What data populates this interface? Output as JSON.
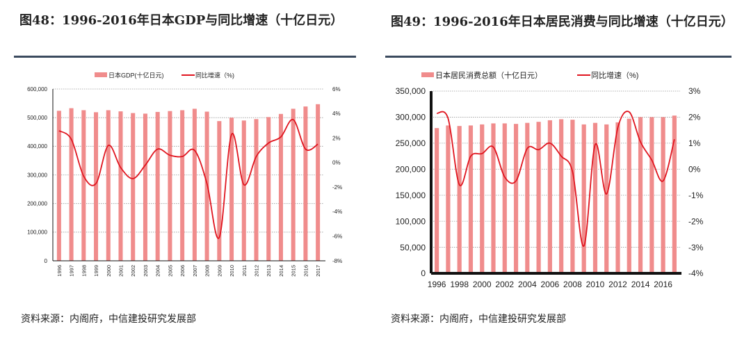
{
  "charts": [
    {
      "title": "图48：1996-2016年日本GDP与同比增速（十亿日元）",
      "source": "资料来源：内阁府，中信建投研究发展部"
    },
    {
      "title": "图49：1996-2016年日本居民消费与同比增速（十亿日元）",
      "source": "资料来源：内阁府，中信建投研究发展部"
    }
  ],
  "colors": {
    "bar": "#f08c8c",
    "line": "#e0141e",
    "rule": "#3b4a5e"
  },
  "chart_data": [
    {
      "type": "bar+line",
      "title": "1996-2016年日本GDP与同比增速（十亿日元）",
      "legend": [
        "日本GDP(十亿日元)",
        "同比增速（%)"
      ],
      "legend_position": "top",
      "categories": [
        "1996",
        "1997",
        "1998",
        "1999",
        "2000",
        "2001",
        "2002",
        "2003",
        "2004",
        "2005",
        "2006",
        "2007",
        "2008",
        "2009",
        "2010",
        "2011",
        "2012",
        "2013",
        "2014",
        "2015",
        "2016",
        "2017"
      ],
      "series": [
        {
          "name": "日本GDP(十亿日元)",
          "type": "bar",
          "axis": "left",
          "values": [
            524000,
            533000,
            526000,
            519000,
            526000,
            522000,
            516000,
            514000,
            520000,
            523000,
            526000,
            531000,
            521000,
            488000,
            500000,
            490000,
            495000,
            502000,
            513000,
            531000,
            539000,
            547000
          ]
        },
        {
          "name": "同比增速（%)",
          "type": "line",
          "axis": "right",
          "values": [
            2.6,
            1.9,
            -1.1,
            -1.7,
            1.4,
            -0.4,
            -1.3,
            -0.2,
            1.1,
            0.6,
            0.5,
            1.0,
            -1.7,
            -6.1,
            2.3,
            -1.8,
            0.5,
            1.6,
            2.1,
            3.5,
            1.1,
            1.5
          ]
        }
      ],
      "ylim_left": [
        0,
        600000
      ],
      "ylim_right": [
        -8,
        6
      ],
      "left_ticks": [
        "0",
        "100,000",
        "200,000",
        "300,000",
        "400,000",
        "500,000",
        "600,000"
      ],
      "right_ticks": [
        "-8%",
        "-6%",
        "-4%",
        "-2%",
        "0%",
        "2%",
        "4%",
        "6%"
      ],
      "x_tick_labels": [
        "1996",
        "1997",
        "1998",
        "1999",
        "2000",
        "2001",
        "2002",
        "2003",
        "2004",
        "2005",
        "2006",
        "2007",
        "2008",
        "2009",
        "2010",
        "2011",
        "2012",
        "2013",
        "2014",
        "2015",
        "2016",
        "2017"
      ],
      "grid": true
    },
    {
      "type": "bar+line",
      "title": "1996-2016年日本居民消费与同比增速（十亿日元）",
      "legend": [
        "日本居民消费总额（十亿日元）",
        "同比增速（%)"
      ],
      "legend_position": "top",
      "categories": [
        "1996",
        "1997",
        "1998",
        "1999",
        "2000",
        "2001",
        "2002",
        "2003",
        "2004",
        "2005",
        "2006",
        "2007",
        "2008",
        "2009",
        "2010",
        "2011",
        "2012",
        "2013",
        "2014",
        "2015",
        "2016",
        "2017"
      ],
      "series": [
        {
          "name": "日本居民消费总额（十亿日元）",
          "type": "bar",
          "axis": "left",
          "values": [
            279000,
            284000,
            283000,
            284000,
            286000,
            288000,
            288000,
            287000,
            289000,
            291000,
            294000,
            296000,
            295000,
            286000,
            289000,
            286000,
            290000,
            297000,
            300000,
            300000,
            300000,
            303000
          ]
        },
        {
          "name": "同比增速（%)",
          "type": "line",
          "axis": "right",
          "values": [
            2.15,
            1.95,
            -0.6,
            0.5,
            0.6,
            0.85,
            -0.3,
            -0.45,
            0.8,
            0.75,
            1.0,
            0.5,
            -0.1,
            -2.95,
            0.95,
            -0.95,
            1.6,
            2.2,
            1.05,
            0.35,
            -0.45,
            1.15
          ]
        }
      ],
      "ylim_left": [
        0,
        350000
      ],
      "ylim_right": [
        -4,
        3
      ],
      "left_ticks": [
        "0",
        "50,000",
        "100,000",
        "150,000",
        "200,000",
        "250,000",
        "300,000",
        "350,000"
      ],
      "right_ticks": [
        "-4%",
        "-3%",
        "-2%",
        "-1%",
        "0%",
        "1%",
        "2%",
        "3%"
      ],
      "x_tick_labels": [
        "1996",
        "",
        "1998",
        "",
        "2000",
        "",
        "2002",
        "",
        "2004",
        "",
        "2006",
        "",
        "2008",
        "",
        "2010",
        "",
        "2012",
        "",
        "2014",
        "",
        "2016",
        ""
      ],
      "grid": true
    }
  ]
}
